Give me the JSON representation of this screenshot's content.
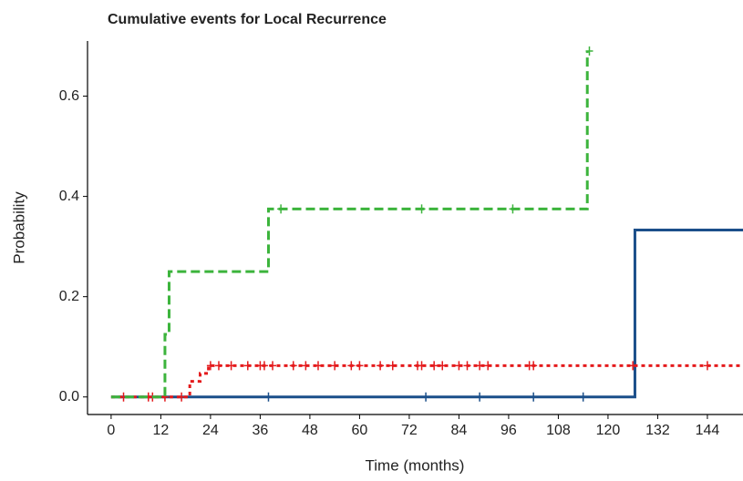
{
  "chart_data": {
    "type": "step",
    "title": "Cumulative events for Local Recurrence",
    "xlabel": "Time (months)",
    "ylabel": "Probability",
    "xlim": [
      -5.7,
      152.6
    ],
    "ylim": [
      -0.035,
      0.71
    ],
    "xticks": [
      0,
      12,
      24,
      36,
      48,
      60,
      72,
      84,
      96,
      108,
      120,
      132,
      144
    ],
    "yticks": [
      {
        "value": 0,
        "label": "0.0"
      },
      {
        "value": 0.2,
        "label": "0.2"
      },
      {
        "value": 0.4,
        "label": "0.4"
      },
      {
        "value": 0.6,
        "label": "0.6"
      }
    ],
    "series": [
      {
        "color": "#1b4f8a",
        "linestyle": "solid",
        "x": [
          0,
          126.5,
          152.6
        ],
        "values": [
          0,
          0.333,
          0.333
        ],
        "censor_x": [
          38,
          76,
          89,
          102,
          114
        ],
        "censor_values": [
          0,
          0,
          0,
          0,
          0
        ]
      },
      {
        "color": "#e41a1c",
        "linestyle": "dotted",
        "x": [
          0,
          19,
          21.5,
          23.5,
          152.6
        ],
        "values": [
          0,
          0.031,
          0.047,
          0.0625,
          0.0625
        ],
        "censor_x": [
          3,
          9,
          10,
          13,
          17,
          24,
          26,
          29,
          33,
          36,
          37,
          39,
          44,
          47,
          50,
          54,
          58,
          60,
          65,
          68,
          74,
          75,
          78,
          80,
          84,
          86,
          89,
          91,
          101,
          102,
          126,
          144
        ],
        "censor_values": [
          0,
          0,
          0,
          0,
          0,
          0.0625,
          0.0625,
          0.0625,
          0.0625,
          0.0625,
          0.0625,
          0.0625,
          0.0625,
          0.0625,
          0.0625,
          0.0625,
          0.0625,
          0.0625,
          0.0625,
          0.0625,
          0.0625,
          0.0625,
          0.0625,
          0.0625,
          0.0625,
          0.0625,
          0.0625,
          0.0625,
          0.0625,
          0.0625,
          0.0625,
          0.0625
        ]
      },
      {
        "color": "#3cb43c",
        "linestyle": "dashed",
        "x": [
          0,
          13,
          14,
          38,
          115
        ],
        "values": [
          0,
          0.125,
          0.25,
          0.375,
          0.69
        ],
        "censor_x": [
          41,
          75,
          97,
          115.5
        ],
        "censor_values": [
          0.375,
          0.375,
          0.375,
          0.69
        ]
      }
    ]
  }
}
